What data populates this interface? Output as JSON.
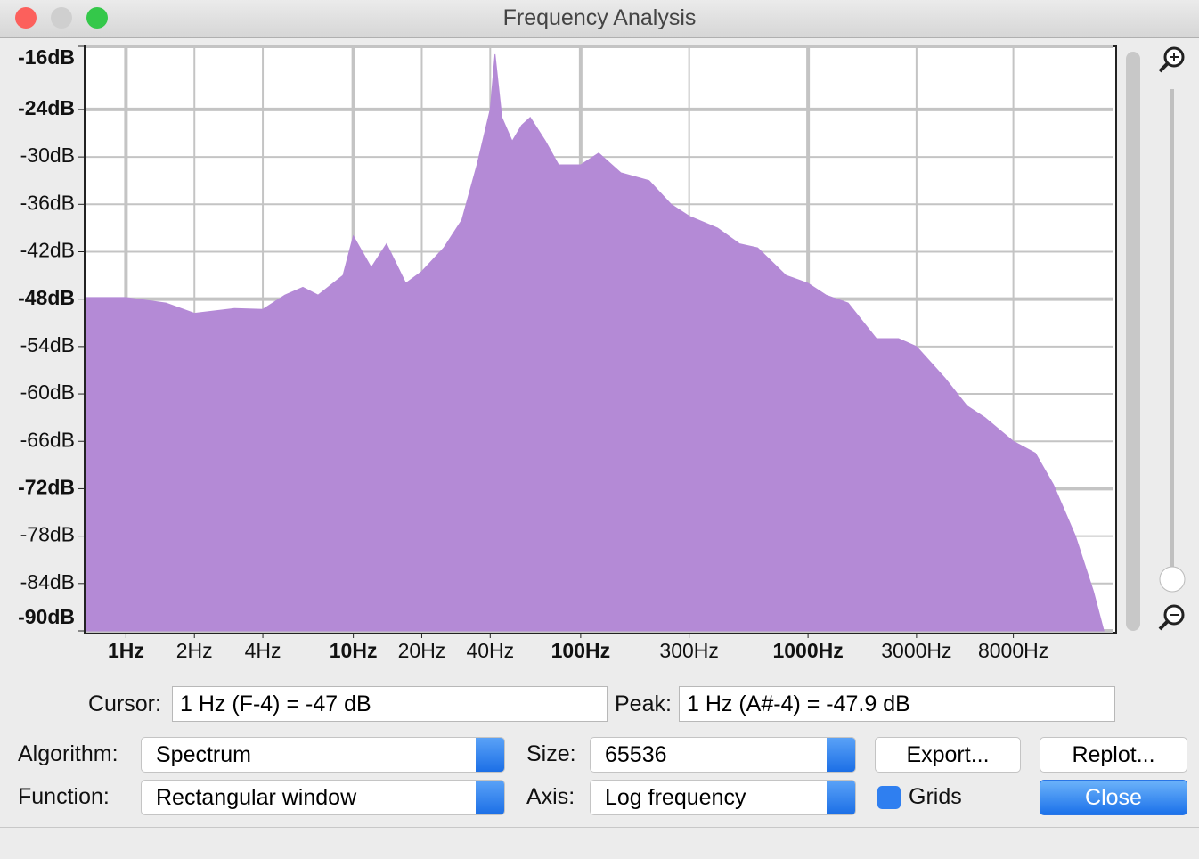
{
  "window": {
    "title": "Frequency Analysis"
  },
  "chart_data": {
    "type": "area",
    "xlog": true,
    "grid": true,
    "color": "#b48ad6",
    "x": [
      0.67,
      1,
      1.5,
      2,
      3,
      4,
      5,
      6,
      7,
      9,
      10,
      12,
      14,
      17,
      20,
      25,
      30,
      35,
      40,
      42,
      45,
      50,
      55,
      60,
      70,
      80,
      100,
      120,
      150,
      200,
      250,
      300,
      400,
      500,
      600,
      800,
      1000,
      1200,
      1500,
      2000,
      2500,
      3000,
      4000,
      5000,
      6000,
      8000,
      10000,
      12000,
      15000,
      18000,
      20000
    ],
    "values": [
      -47.8,
      -47.8,
      -48.5,
      -49.8,
      -49.2,
      -49.3,
      -47.5,
      -46.5,
      -47.5,
      -45,
      -40,
      -44,
      -41,
      -46,
      -44.5,
      -41.5,
      -38,
      -31,
      -24,
      -17,
      -25,
      -28,
      -26,
      -25,
      -28,
      -31,
      -31,
      -29.5,
      -32,
      -33,
      -36,
      -37.5,
      -39,
      -41,
      -41.5,
      -45,
      -46,
      -47.5,
      -48.5,
      -53,
      -53,
      -54,
      -58,
      -61.5,
      -63,
      -66,
      -67.5,
      -71.5,
      -78,
      -85,
      -90
    ],
    "xlim": [
      0.67,
      22050
    ],
    "ylim": [
      -16,
      -90
    ],
    "xticks": [
      {
        "value": 1,
        "label": "1Hz"
      },
      {
        "value": 2,
        "label": "2Hz"
      },
      {
        "value": 4,
        "label": "4Hz"
      },
      {
        "value": 10,
        "label": "10Hz"
      },
      {
        "value": 20,
        "label": "20Hz"
      },
      {
        "value": 40,
        "label": "40Hz"
      },
      {
        "value": 100,
        "label": "100Hz"
      },
      {
        "value": 300,
        "label": "300Hz"
      },
      {
        "value": 1000,
        "label": "1000Hz"
      },
      {
        "value": 3000,
        "label": "3000Hz"
      },
      {
        "value": 8000,
        "label": "8000Hz"
      }
    ],
    "yticks": [
      {
        "value": -16,
        "label": "-16dB"
      },
      {
        "value": -24,
        "label": "-24dB"
      },
      {
        "value": -30,
        "label": "-30dB"
      },
      {
        "value": -36,
        "label": "-36dB"
      },
      {
        "value": -42,
        "label": "-42dB"
      },
      {
        "value": -48,
        "label": "-48dB"
      },
      {
        "value": -54,
        "label": "-54dB"
      },
      {
        "value": -60,
        "label": "-60dB"
      },
      {
        "value": -66,
        "label": "-66dB"
      },
      {
        "value": -72,
        "label": "-72dB"
      },
      {
        "value": -78,
        "label": "-78dB"
      },
      {
        "value": -84,
        "label": "-84dB"
      },
      {
        "value": -90,
        "label": "-90dB"
      }
    ]
  },
  "controls": {
    "cursor_label": "Cursor:",
    "cursor_value": "1 Hz (F-4) = -47 dB",
    "peak_label": "Peak:",
    "peak_value": "1 Hz (A#-4) = -47.9 dB",
    "algorithm_label": "Algorithm:",
    "algorithm_value": "Spectrum",
    "size_label": "Size:",
    "size_value": "65536",
    "export": "Export...",
    "replot": "Replot...",
    "function_label": "Function:",
    "function_value": "Rectangular window",
    "axis_label": "Axis:",
    "axis_value": "Log frequency",
    "grids": "Grids",
    "close": "Close"
  }
}
